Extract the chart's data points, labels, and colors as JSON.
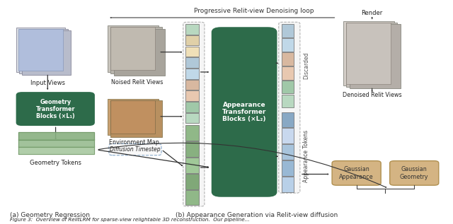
{
  "title_caption": "Figure 3:  Overview of RelitLRM for sparse-view relightable 3D reconstruction.  Our pipeline...",
  "section_a_label": "(a) Geometry Regression",
  "section_b_label": "(b) Appearance Generation via Relit-view diffusion",
  "loop_label": "Progressive Relit-view Denoising loop",
  "label_input_views": "Input Views",
  "label_geometry_transformer": "Geometry\nTransformer\nBlocks (×L₁)",
  "label_geometry_tokens": "Geometry Tokens",
  "label_noised_relit_views": "Noised Relit Views",
  "label_environment_map": "Environment Map",
  "label_diffusion_timestep": "Diffusion Timestep",
  "label_appearance_transformer": "Appearance\nTransformer\nBlocks (×L₂)",
  "label_appearance_tokens": "Appearance Tokens",
  "label_discarded": "Discarded",
  "label_gaussian_appearance": "Gaussian\nAppearance",
  "label_gaussian_geometry": "Gaussian\nGeometry",
  "label_denoised_relit_views": "Denoised Relit Views",
  "label_render": "Render",
  "box_green_dark": "#2d6b4a",
  "box_tan_color": "#d4b483",
  "arrow_color": "#333333",
  "fig_width": 6.4,
  "fig_height": 3.17
}
